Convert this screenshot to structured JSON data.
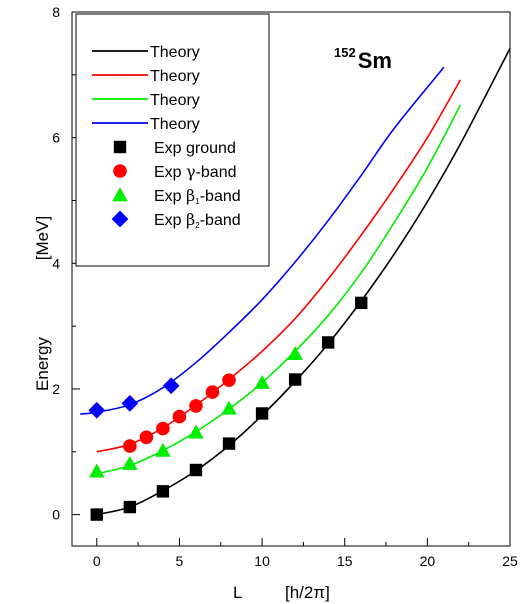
{
  "chart_data": {
    "type": "scatter",
    "title": "",
    "annotation": {
      "mass": "152",
      "element": "Sm"
    },
    "xlabel": "L",
    "xunit": "[h/2π]",
    "ylabel": "Energy",
    "yunit": "[MeV]",
    "xlim": [
      -1.5,
      25
    ],
    "ylim": [
      -0.5,
      8
    ],
    "xticks": [
      0,
      5,
      10,
      15,
      20,
      25
    ],
    "yticks": [
      0,
      2,
      4,
      6,
      8
    ],
    "grid": false,
    "legend_position": "top-left",
    "series": [
      {
        "name": "Theory",
        "kind": "line",
        "color": "#000000",
        "x": [
          0,
          2,
          4,
          6,
          8,
          10,
          12,
          14,
          16,
          18,
          20,
          22,
          25
        ],
        "y": [
          0,
          0.12,
          0.38,
          0.7,
          1.1,
          1.58,
          2.12,
          2.72,
          3.4,
          4.15,
          4.98,
          5.9,
          7.42
        ]
      },
      {
        "name": "Theory",
        "kind": "line",
        "color": "#ff0000",
        "x": [
          0,
          2,
          4,
          6,
          8,
          10,
          12,
          14,
          16,
          18,
          20,
          22
        ],
        "y": [
          1.0,
          1.12,
          1.38,
          1.74,
          2.15,
          2.6,
          3.12,
          3.75,
          4.45,
          5.2,
          6.0,
          6.92
        ]
      },
      {
        "name": "Theory",
        "kind": "line",
        "color": "#00ee00",
        "x": [
          0,
          2,
          4,
          6,
          8,
          10,
          12,
          14,
          16,
          18,
          20,
          22
        ],
        "y": [
          0.65,
          0.78,
          1.02,
          1.32,
          1.68,
          2.1,
          2.6,
          3.17,
          3.85,
          4.65,
          5.52,
          6.52
        ]
      },
      {
        "name": "Theory",
        "kind": "line",
        "color": "#0000ff",
        "x": [
          -1,
          0,
          2,
          4,
          6,
          8,
          10,
          12,
          14,
          16,
          18,
          21
        ],
        "y": [
          1.6,
          1.63,
          1.75,
          2.02,
          2.42,
          2.9,
          3.42,
          4.02,
          4.68,
          5.4,
          6.15,
          7.12
        ]
      },
      {
        "name": "Exp ground",
        "kind": "marker",
        "marker": "square",
        "color": "#000000",
        "x": [
          0,
          2,
          4,
          6,
          8,
          10,
          12,
          14,
          16
        ],
        "y": [
          0.0,
          0.12,
          0.37,
          0.71,
          1.13,
          1.61,
          2.15,
          2.74,
          3.37
        ]
      },
      {
        "name": "Exp γ-band",
        "name_parts": [
          "Exp ",
          "γ",
          "-band",
          ""
        ],
        "kind": "marker",
        "marker": "circle",
        "color": "#ff0000",
        "x": [
          2,
          3,
          4,
          5,
          6,
          7,
          8
        ],
        "y": [
          1.09,
          1.23,
          1.37,
          1.56,
          1.73,
          1.95,
          2.14
        ]
      },
      {
        "name": "Exp β1-band",
        "name_parts": [
          "Exp ",
          "β",
          "-band",
          "1"
        ],
        "kind": "marker",
        "marker": "triangle",
        "color": "#00ee00",
        "x": [
          0,
          2,
          4,
          6,
          8,
          10,
          12
        ],
        "y": [
          0.69,
          0.81,
          1.02,
          1.31,
          1.69,
          2.1,
          2.56
        ]
      },
      {
        "name": "Exp β2-band",
        "name_parts": [
          "Exp ",
          "β",
          "-band",
          "2"
        ],
        "kind": "marker",
        "marker": "diamond",
        "color": "#0000ff",
        "x": [
          0,
          2,
          4.5
        ],
        "y": [
          1.66,
          1.77,
          2.05
        ]
      }
    ]
  }
}
